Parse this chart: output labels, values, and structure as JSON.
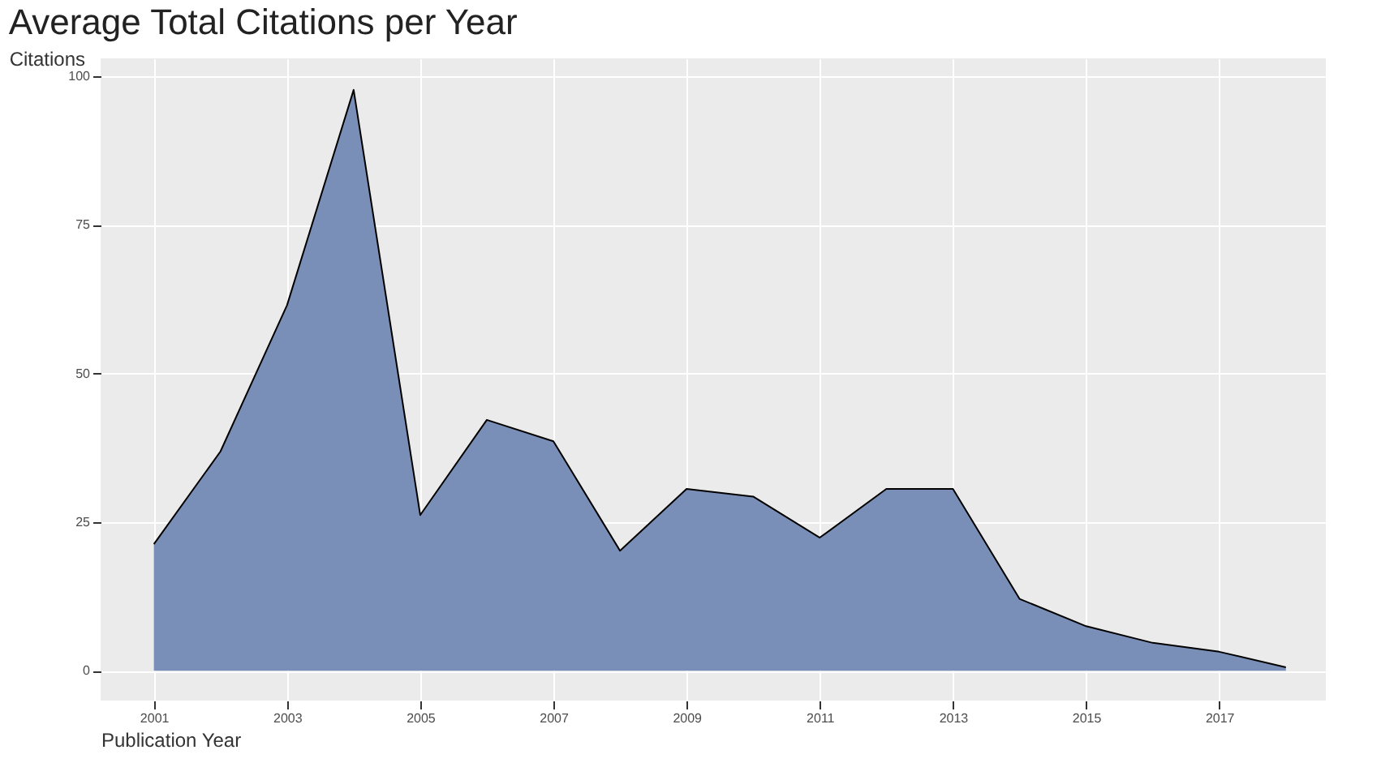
{
  "chart_data": {
    "type": "area",
    "title": "Average Total Citations per Year",
    "xlabel": "Publication Year",
    "ylabel": "Citations",
    "x": [
      2001,
      2002,
      2003,
      2004,
      2005,
      2006,
      2007,
      2008,
      2009,
      2010,
      2011,
      2012,
      2013,
      2014,
      2015,
      2016,
      2017,
      2018
    ],
    "series": [
      {
        "color": "#7a8fb7",
        "values": [
          21.3,
          36.9,
          61.5,
          97.7,
          26.2,
          42.2,
          38.6,
          20.2,
          30.6,
          29.3,
          22.4,
          30.6,
          30.6,
          12.1,
          7.5,
          4.7,
          3.2,
          0.6
        ]
      }
    ],
    "xlim": [
      2000.2,
      2018.6
    ],
    "ylim": [
      -5,
      103
    ],
    "xticks": [
      2001,
      2003,
      2005,
      2007,
      2009,
      2011,
      2013,
      2015,
      2017
    ],
    "yticks": [
      0,
      25,
      50,
      75,
      100
    ],
    "grid": true
  }
}
